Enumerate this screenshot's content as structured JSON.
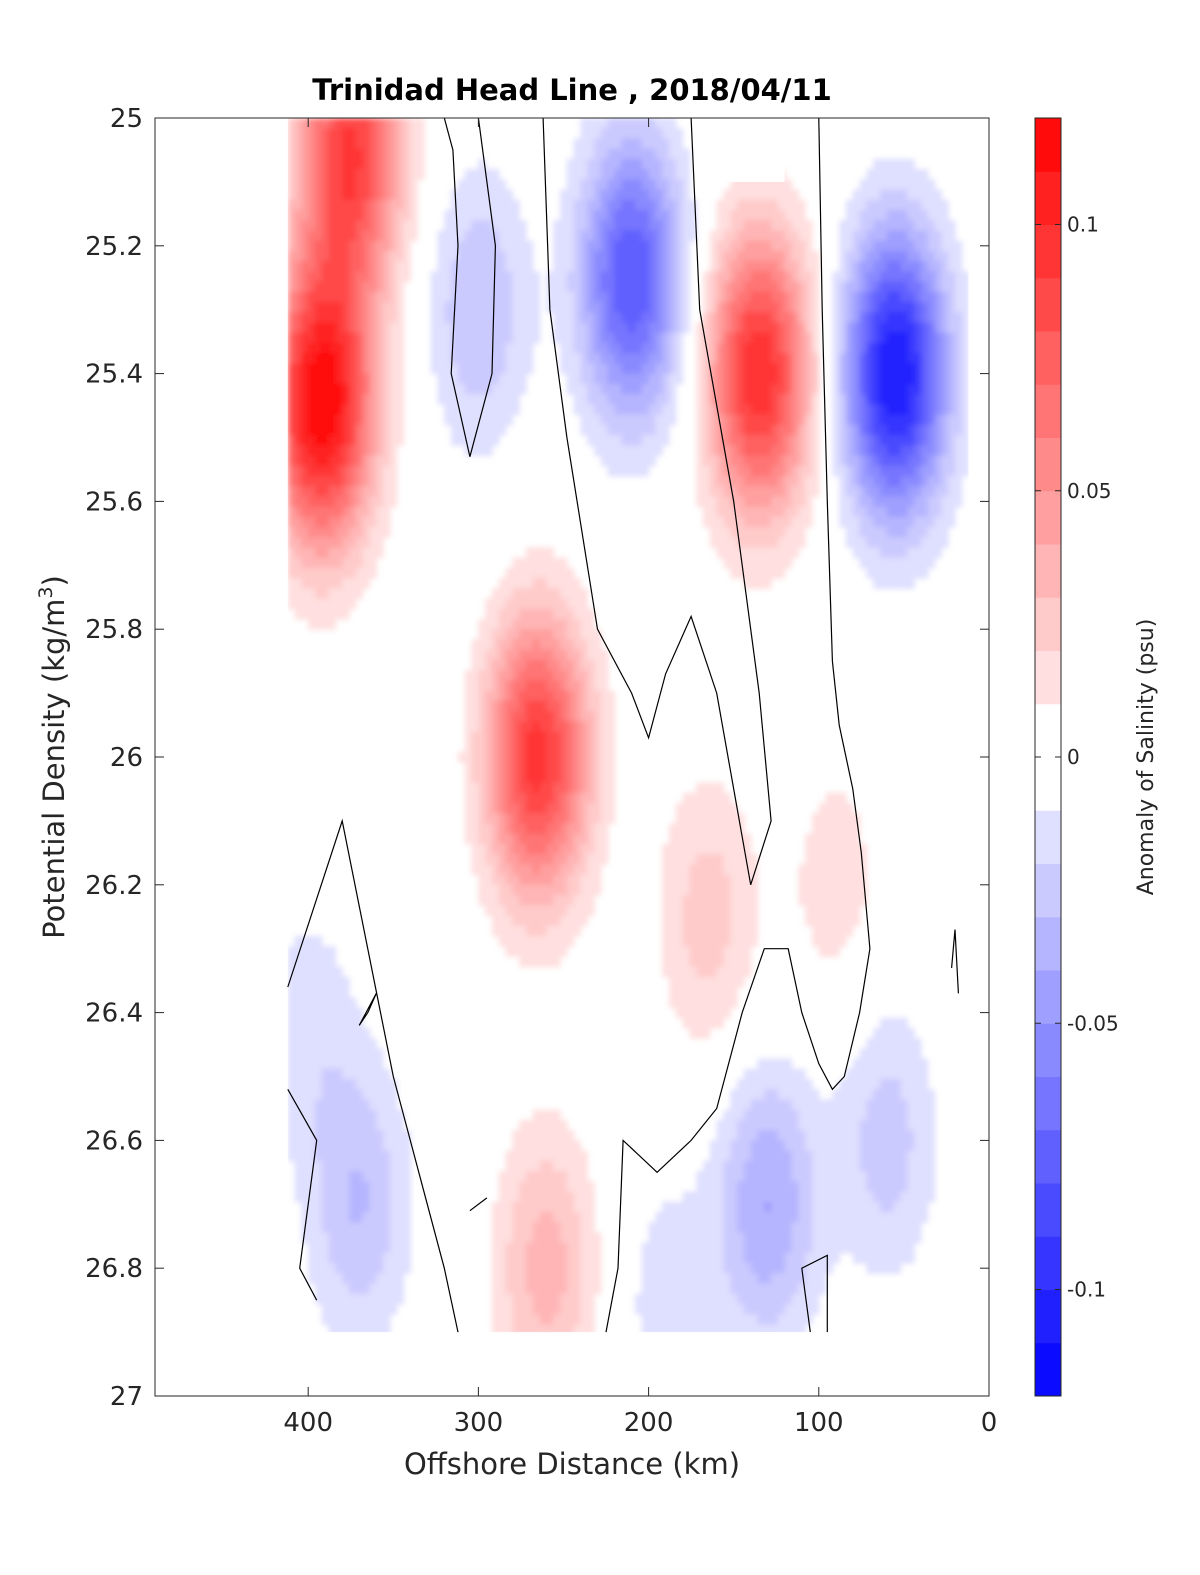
{
  "chart_data": {
    "type": "heatmap",
    "title": "Trinidad Head Line , 2018/04/11",
    "xlabel": "Offshore Distance (km)",
    "ylabel_main": "Potential Density (kg/m",
    "ylabel_sup": "3",
    "ylabel_close": ")",
    "xlim": [
      490,
      0
    ],
    "ylim": [
      27,
      25
    ],
    "x_ticks": [
      400,
      300,
      200,
      100,
      0
    ],
    "x_tick_labels": [
      "400",
      "300",
      "200",
      "100",
      "0"
    ],
    "y_ticks": [
      25,
      25.2,
      25.4,
      25.6,
      25.8,
      26,
      26.2,
      26.4,
      26.6,
      26.8,
      27
    ],
    "y_tick_labels": [
      "25",
      "25.2",
      "25.4",
      "25.6",
      "25.8",
      "26",
      "26.2",
      "26.4",
      "26.6",
      "26.8",
      "27"
    ],
    "colorbar": {
      "label": "Anomaly of Salinity (psu)",
      "range": [
        -0.12,
        0.12
      ],
      "levels": 24,
      "ticks": [
        0.1,
        0.05,
        0,
        -0.05,
        -0.1
      ],
      "tick_labels": [
        "0.1",
        "0.05",
        "0",
        "-0.05",
        "-0.1"
      ],
      "colormap": "blue-white-red",
      "positive_color": "#ff0000",
      "negative_color": "#0000ff"
    },
    "data_extent": {
      "x": [
        412,
        12
      ],
      "y": [
        25,
        26.9
      ]
    },
    "anomaly_features": [
      {
        "sign": "positive",
        "x": 392,
        "y": 25.45,
        "peak": 0.12
      },
      {
        "sign": "positive",
        "x": 375,
        "y": 25.05,
        "peak": 0.09
      },
      {
        "sign": "positive",
        "x": 265,
        "y": 26.0,
        "peak": 0.095
      },
      {
        "sign": "positive",
        "x": 135,
        "y": 25.4,
        "peak": 0.1
      },
      {
        "sign": "positive",
        "x": 260,
        "y": 26.8,
        "peak": 0.035
      },
      {
        "sign": "positive",
        "x": 165,
        "y": 26.25,
        "peak": 0.025
      },
      {
        "sign": "positive",
        "x": 90,
        "y": 26.2,
        "peak": 0.015
      },
      {
        "sign": "negative",
        "x": 55,
        "y": 25.4,
        "peak": -0.11
      },
      {
        "sign": "negative",
        "x": 210,
        "y": 25.25,
        "peak": -0.08
      },
      {
        "sign": "negative",
        "x": 300,
        "y": 25.3,
        "peak": -0.03
      },
      {
        "sign": "negative",
        "x": 130,
        "y": 26.7,
        "peak": -0.04
      },
      {
        "sign": "negative",
        "x": 370,
        "y": 26.7,
        "peak": -0.03
      },
      {
        "sign": "negative",
        "x": 60,
        "y": 26.6,
        "peak": -0.025
      },
      {
        "sign": "negative",
        "x": 400,
        "y": 26.42,
        "peak": -0.015
      },
      {
        "sign": "negative",
        "x": 190,
        "y": 26.85,
        "peak": -0.015
      }
    ],
    "masked_regions": [
      {
        "x": [
          160,
          120
        ],
        "y": [
          25,
          25.1
        ]
      },
      {
        "x": [
          490,
          412
        ],
        "y": [
          25,
          27
        ]
      },
      {
        "x": [
          12,
          0
        ],
        "y": [
          25,
          27
        ]
      },
      {
        "x": [
          412,
          12
        ],
        "y": [
          26.9,
          27
        ]
      }
    ],
    "zero_contours": [
      {
        "points": [
          [
            320,
            25.0
          ],
          [
            315,
            25.05
          ],
          [
            312,
            25.2
          ],
          [
            316,
            25.4
          ],
          [
            305,
            25.53
          ],
          [
            292,
            25.4
          ],
          [
            290,
            25.2
          ],
          [
            300,
            25.0
          ]
        ]
      },
      {
        "points": [
          [
            262,
            25.0
          ],
          [
            258,
            25.3
          ],
          [
            248,
            25.5
          ],
          [
            230,
            25.8
          ],
          [
            210,
            25.9
          ],
          [
            200,
            25.97
          ],
          [
            190,
            25.87
          ],
          [
            175,
            25.78
          ],
          [
            160,
            25.9
          ],
          [
            150,
            26.05
          ],
          [
            140,
            26.2
          ],
          [
            128,
            26.1
          ],
          [
            135,
            25.9
          ],
          [
            150,
            25.6
          ],
          [
            170,
            25.3
          ],
          [
            175,
            25.0
          ]
        ]
      },
      {
        "points": [
          [
            100,
            25.0
          ],
          [
            98,
            25.3
          ],
          [
            95,
            25.6
          ],
          [
            92,
            25.85
          ],
          [
            88,
            25.95
          ],
          [
            80,
            26.05
          ],
          [
            75,
            26.15
          ],
          [
            70,
            26.3
          ],
          [
            76,
            26.4
          ],
          [
            85,
            26.5
          ],
          [
            92,
            26.52
          ],
          [
            100,
            26.48
          ],
          [
            110,
            26.4
          ],
          [
            118,
            26.3
          ],
          [
            132,
            26.3
          ],
          [
            145,
            26.4
          ],
          [
            160,
            26.55
          ],
          [
            175,
            26.6
          ],
          [
            195,
            26.65
          ],
          [
            215,
            26.6
          ],
          [
            218,
            26.8
          ],
          [
            225,
            26.9
          ]
        ]
      },
      {
        "points": [
          [
            412,
            26.36
          ],
          [
            380,
            26.1
          ],
          [
            350,
            26.5
          ],
          [
            330,
            26.7
          ],
          [
            320,
            26.8
          ],
          [
            312,
            26.9
          ]
        ]
      },
      {
        "points": [
          [
            412,
            26.52
          ],
          [
            395,
            26.6
          ],
          [
            405,
            26.8
          ],
          [
            395,
            26.85
          ]
        ]
      },
      {
        "points": [
          [
            105,
            26.9
          ],
          [
            110,
            26.8
          ],
          [
            95,
            26.78
          ],
          [
            95,
            26.9
          ]
        ]
      },
      {
        "points": [
          [
            365,
            26.4
          ],
          [
            370,
            26.42
          ],
          [
            360,
            26.37
          ],
          [
            365,
            26.4
          ]
        ]
      },
      {
        "points": [
          [
            300,
            26.7
          ],
          [
            305,
            26.71
          ],
          [
            295,
            26.69
          ],
          [
            300,
            26.7
          ]
        ]
      },
      {
        "points": [
          [
            22,
            26.33
          ],
          [
            20,
            26.27
          ],
          [
            18,
            26.37
          ]
        ]
      }
    ]
  }
}
